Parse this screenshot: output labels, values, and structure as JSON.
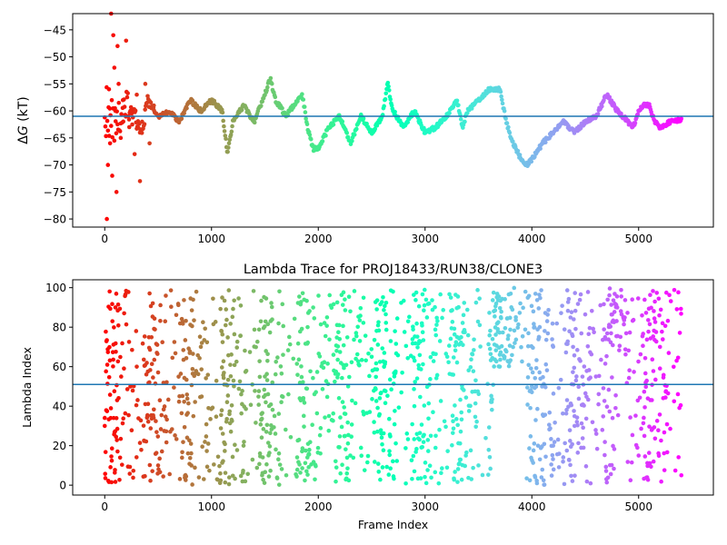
{
  "chart_data": [
    {
      "type": "scatter",
      "title": "",
      "xlabel": "",
      "ylabel": "ΔG (kT)",
      "ylabel_parts": {
        "delta": "Δ",
        "var": "G",
        "unit": " (kT)"
      },
      "xlim": [
        -300,
        5700
      ],
      "ylim": [
        -81.5,
        -42
      ],
      "xticks": [
        0,
        1000,
        2000,
        3000,
        4000,
        5000
      ],
      "yticks": [
        -80,
        -75,
        -70,
        -65,
        -60,
        -55,
        -50,
        -45
      ],
      "hline": -61,
      "hline_color": "#1f77b4",
      "colormap": "rainbow (red at frame 0 to violet at last frame)",
      "n_frames": 5400,
      "series_trend": {
        "x": [
          0,
          100,
          200,
          300,
          350,
          400,
          500,
          600,
          700,
          800,
          900,
          1000,
          1100,
          1150,
          1200,
          1300,
          1400,
          1500,
          1550,
          1600,
          1700,
          1800,
          1850,
          1900,
          1950,
          2000,
          2100,
          2200,
          2300,
          2400,
          2500,
          2600,
          2650,
          2700,
          2800,
          2900,
          3000,
          3100,
          3200,
          3300,
          3350,
          3400,
          3500,
          3600,
          3700,
          3750,
          3800,
          3900,
          3950,
          4000,
          4100,
          4200,
          4300,
          4400,
          4500,
          4600,
          4700,
          4800,
          4900,
          4950,
          5000,
          5050,
          5100,
          5150,
          5200,
          5300,
          5400
        ],
        "y": [
          -60,
          -62,
          -58,
          -62,
          -64,
          -58,
          -61,
          -60,
          -62,
          -58,
          -60,
          -58,
          -60,
          -68,
          -62,
          -59,
          -62,
          -57,
          -54,
          -58,
          -61,
          -58,
          -57,
          -63,
          -67,
          -67,
          -63,
          -61,
          -66,
          -61,
          -64,
          -61,
          -55,
          -60,
          -63,
          -60,
          -64,
          -63,
          -61,
          -58,
          -63,
          -60,
          -58,
          -56,
          -56,
          -61,
          -65,
          -69,
          -70,
          -69,
          -66,
          -64,
          -62,
          -64,
          -62,
          -61,
          -57,
          -60,
          -62,
          -63,
          -60,
          -59,
          -59,
          -62,
          -63,
          -62,
          -61.5
        ]
      },
      "series_scatter": {
        "x": [
          20,
          30,
          40,
          50,
          60,
          70,
          80,
          90,
          100,
          110,
          120,
          130,
          150,
          170,
          200,
          230,
          250,
          280,
          300,
          330,
          350,
          380,
          420,
          460
        ],
        "y": [
          -80,
          -70,
          -56,
          -66,
          -42,
          -72,
          -46,
          -52,
          -60,
          -75,
          -48,
          -55,
          -65,
          -58,
          -47,
          -63,
          -60,
          -68,
          -57,
          -73,
          -62,
          -55,
          -66,
          -59
        ]
      }
    },
    {
      "type": "scatter",
      "title": "Lambda Trace for PROJ18433/RUN38/CLONE3",
      "xlabel": "Frame Index",
      "ylabel": "Lambda Index",
      "xlim": [
        -300,
        5700
      ],
      "ylim": [
        -5,
        104
      ],
      "xticks": [
        0,
        1000,
        2000,
        3000,
        4000,
        5000
      ],
      "yticks": [
        0,
        20,
        40,
        60,
        80,
        100
      ],
      "hline": 51,
      "hline_color": "#1f77b4",
      "colormap": "rainbow (red at frame 0 to violet at last frame)",
      "n_frames": 5400,
      "sample_points": {
        "x": [
          0,
          100,
          300,
          500,
          700,
          900,
          1100,
          1300,
          1500,
          1700,
          1900,
          2100,
          2300,
          2500,
          2700,
          2900,
          3100,
          3300,
          3500,
          3700,
          3850,
          4000,
          4200,
          4400,
          4600,
          4800,
          5000,
          5200,
          5400
        ],
        "y": [
          30,
          90,
          60,
          10,
          45,
          70,
          95,
          20,
          55,
          5,
          80,
          35,
          15,
          65,
          98,
          40,
          25,
          75,
          10,
          60,
          85,
          50,
          20,
          30,
          55,
          90,
          15,
          70,
          5
        ]
      }
    }
  ]
}
